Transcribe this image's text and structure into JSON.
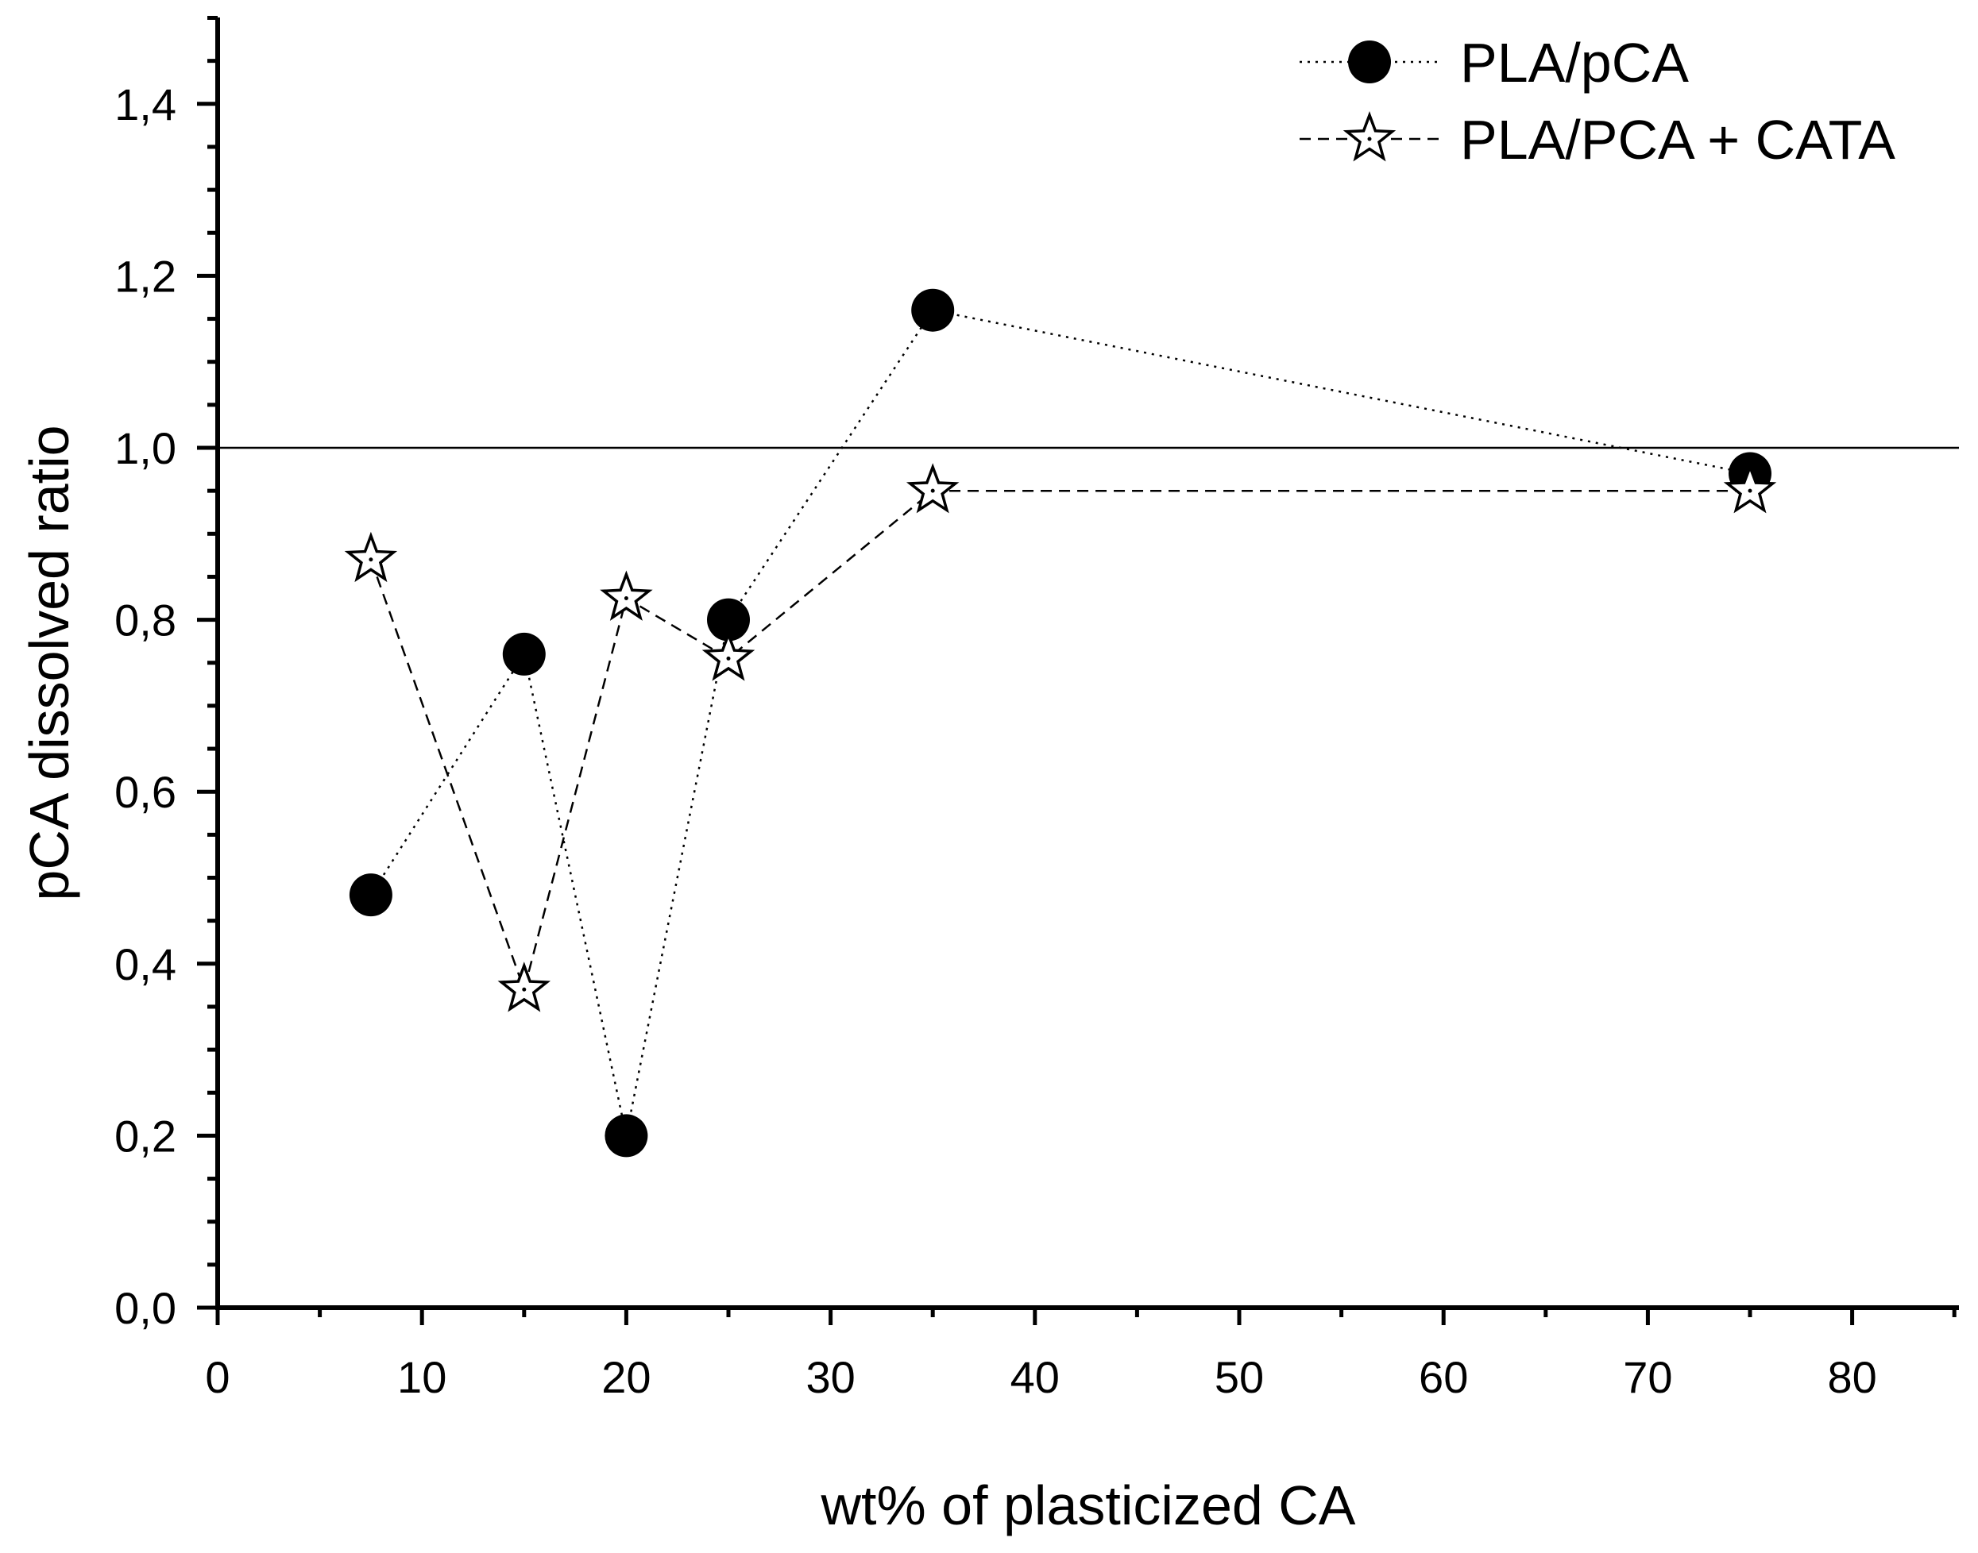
{
  "chart_data": {
    "type": "scatter",
    "title": "",
    "xlabel": "wt% of plasticized CA",
    "ylabel": "pCA dissolved ratio",
    "xlim": [
      0,
      85
    ],
    "ylim": [
      0,
      1.5
    ],
    "x_ticks": [
      0,
      10,
      20,
      30,
      40,
      50,
      60,
      70,
      80
    ],
    "x_tick_labels": [
      "0",
      "10",
      "20",
      "30",
      "40",
      "50",
      "60",
      "70",
      "80"
    ],
    "y_ticks": [
      0,
      0.2,
      0.4,
      0.6,
      0.8,
      1.0,
      1.2,
      1.4
    ],
    "y_tick_labels": [
      "0,0",
      "0,2",
      "0,4",
      "0,6",
      "0,8",
      "1,0",
      "1,2",
      "1,4"
    ],
    "reference_line": {
      "y": 1.0
    },
    "grid": false,
    "legend_position": "top-right",
    "series": [
      {
        "name": "PLA/pCA",
        "marker": "filled-circle",
        "line_style": "dotted",
        "color": "#000000",
        "x": [
          7.5,
          15,
          20,
          25,
          35,
          75
        ],
        "y": [
          0.48,
          0.76,
          0.2,
          0.8,
          1.16,
          0.97
        ]
      },
      {
        "name": "PLA/PCA + CATA",
        "marker": "open-star",
        "line_style": "dashed",
        "color": "#000000",
        "x": [
          7.5,
          15,
          20,
          25,
          35,
          75
        ],
        "y": [
          0.87,
          0.37,
          0.825,
          0.755,
          0.95,
          0.95
        ]
      }
    ]
  }
}
